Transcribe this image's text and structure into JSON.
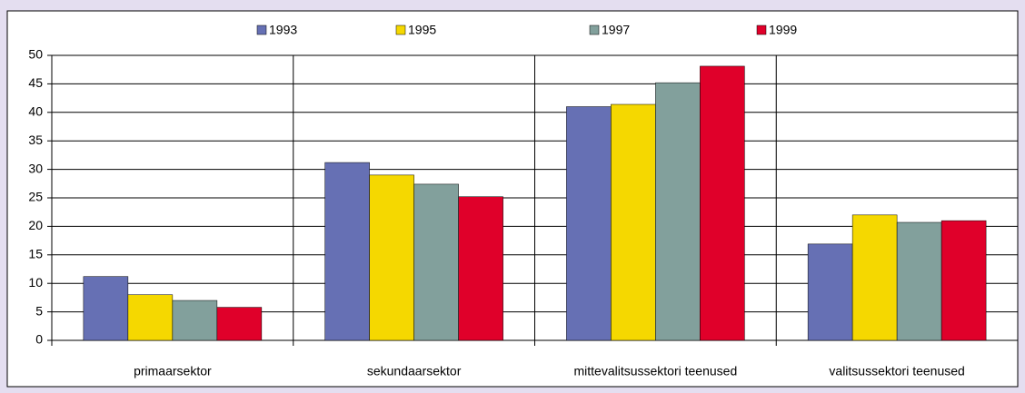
{
  "chart_data": {
    "type": "bar",
    "categories": [
      "primaarsektor",
      "sekundaarsektor",
      "mittevalitsussektori teenused",
      "valitsussektori teenused"
    ],
    "series": [
      {
        "name": "1993",
        "color": "#6670b4",
        "values": [
          11.2,
          31.2,
          41.0,
          16.9
        ]
      },
      {
        "name": "1995",
        "color": "#f5d800",
        "values": [
          8.0,
          29.0,
          41.4,
          22.0
        ]
      },
      {
        "name": "1997",
        "color": "#82a09c",
        "values": [
          7.0,
          27.4,
          45.2,
          20.7
        ]
      },
      {
        "name": "1999",
        "color": "#e0002a",
        "values": [
          5.8,
          25.2,
          48.1,
          21.0
        ]
      }
    ],
    "ylim": [
      0,
      50
    ],
    "yticks": [
      0,
      5,
      10,
      15,
      20,
      25,
      30,
      35,
      40,
      45,
      50
    ],
    "grid": true,
    "legend": "top"
  }
}
